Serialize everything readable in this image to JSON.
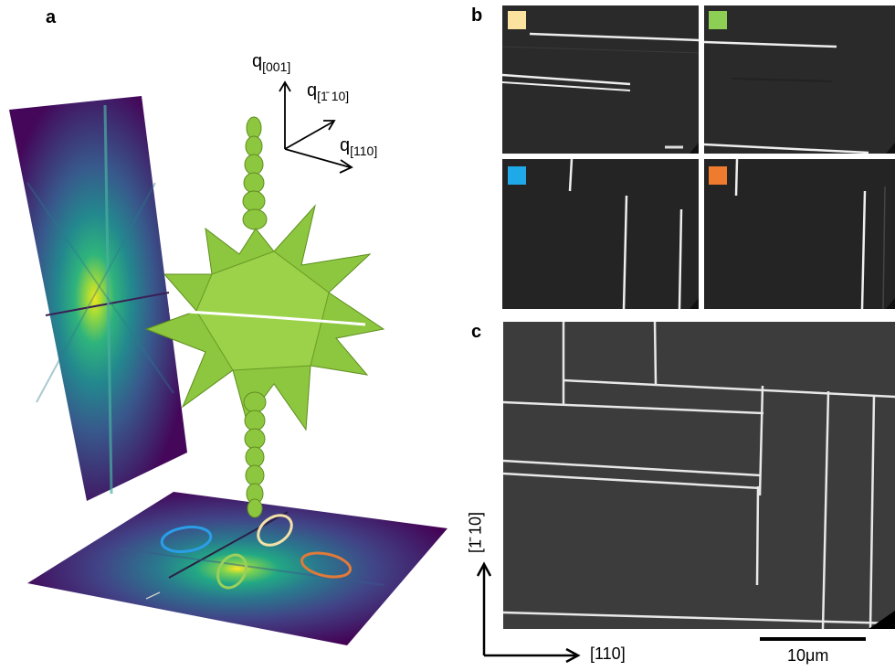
{
  "figure": {
    "panel_a": {
      "letter": "a",
      "q_labels": {
        "q001_base": "q",
        "q001_sub": "[001]",
        "q110bar_base": "q",
        "q110bar_sub": "[1̄ 10]",
        "q110_base": "q",
        "q110_sub": "[110]"
      },
      "ring_colors": {
        "blue": "#2a9ee8",
        "cream": "#f4e1a6",
        "green": "#9ccf5a",
        "orange": "#e07a3a"
      },
      "surface_color": "#8dc63f"
    },
    "panel_b": {
      "letter": "b",
      "swatches": {
        "yellow": "#fbe29e",
        "green": "#8dcf55",
        "blue": "#1fa9e9",
        "orange": "#ee7b2e"
      }
    },
    "panel_c": {
      "letter": "c",
      "axis_x": "[110]",
      "axis_y": "[1̄ 10]",
      "scalebar": "10μm"
    }
  }
}
